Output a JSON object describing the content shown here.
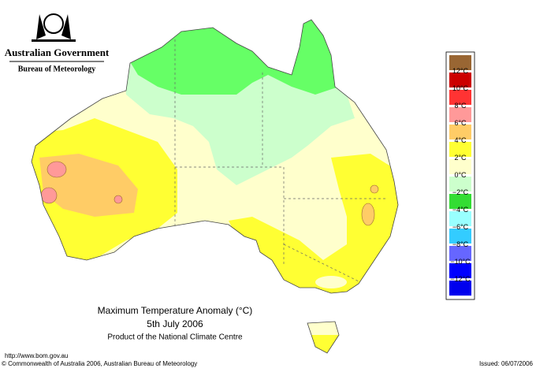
{
  "header": {
    "title": "Australian Government",
    "subtitle": "Bureau of Meteorology"
  },
  "legend": {
    "labels": [
      "12°C",
      "10°C",
      "8°C",
      "6°C",
      "4°C",
      "2°C",
      "0°C",
      "−2°C",
      "−4°C",
      "−6°C",
      "−8°C",
      "−10°C",
      "−12°C"
    ],
    "colors": [
      "#996633",
      "#cc0000",
      "#ff3333",
      "#ff9999",
      "#ffcc66",
      "#ffff33",
      "#ffffcc",
      "#ccffcc",
      "#33dd33",
      "#99ffff",
      "#33ccff",
      "#6666ff",
      "#0000ff",
      "#0000ee"
    ]
  },
  "caption": {
    "title": "Maximum Temperature Anomaly (°C)",
    "date": "5th July 2006",
    "product": "Product of the National Climate Centre"
  },
  "footer": {
    "url": "http://www.bom.gov.au",
    "copyright": "© Commonwealth of Australia 2006, Australian Bureau of Meteorology",
    "issued": "Issued: 06/07/2006"
  }
}
